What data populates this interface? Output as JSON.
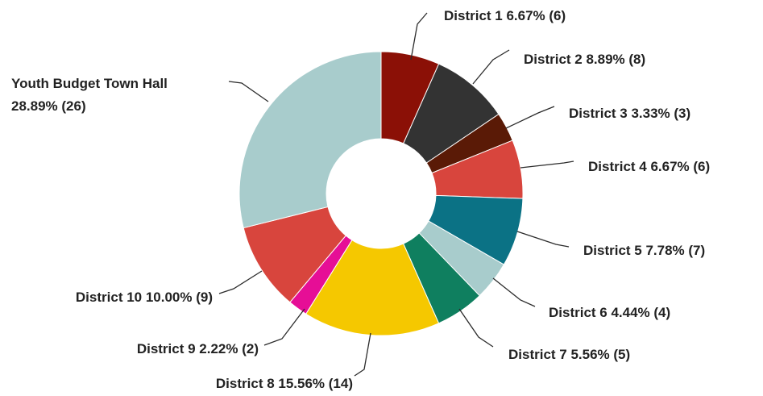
{
  "chart_data": {
    "type": "pie",
    "donut": true,
    "slices": [
      {
        "name": "District 1",
        "percent_label": "6.67%",
        "count": 6,
        "value": 6.67,
        "color": "#8b1006"
      },
      {
        "name": "District 2",
        "percent_label": "8.89%",
        "count": 8,
        "value": 8.89,
        "color": "#333333"
      },
      {
        "name": "District 3",
        "percent_label": "3.33%",
        "count": 3,
        "value": 3.33,
        "color": "#5a1a06"
      },
      {
        "name": "District 4",
        "percent_label": "6.67%",
        "count": 6,
        "value": 6.67,
        "color": "#d8453d"
      },
      {
        "name": "District 5",
        "percent_label": "7.78%",
        "count": 7,
        "value": 7.78,
        "color": "#0b7285"
      },
      {
        "name": "District 6",
        "percent_label": "4.44%",
        "count": 4,
        "value": 4.44,
        "color": "#a8cccc"
      },
      {
        "name": "District 7",
        "percent_label": "5.56%",
        "count": 5,
        "value": 5.56,
        "color": "#0f7f5f"
      },
      {
        "name": "District 8",
        "percent_label": "15.56%",
        "count": 14,
        "value": 15.56,
        "color": "#f5c800"
      },
      {
        "name": "District 9",
        "percent_label": "2.22%",
        "count": 2,
        "value": 2.22,
        "color": "#e60e96"
      },
      {
        "name": "District 10",
        "percent_label": "10.00%",
        "count": 9,
        "value": 10.0,
        "color": "#d8453d"
      },
      {
        "name": "Youth Budget Town Hall",
        "percent_label": "28.89%",
        "count": 26,
        "value": 28.89,
        "color": "#a8cccc"
      }
    ]
  }
}
